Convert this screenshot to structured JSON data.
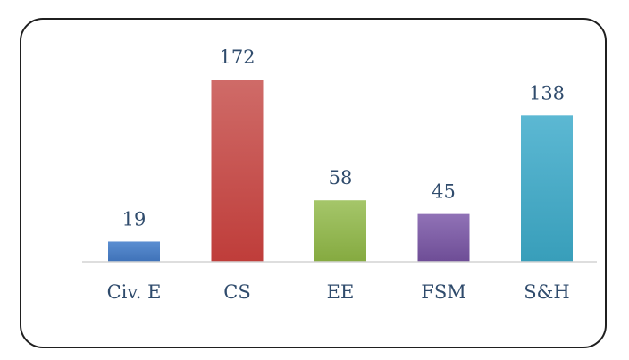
{
  "chart_data": {
    "type": "bar",
    "categories": [
      "Civ. E",
      "CS",
      "EE",
      "FSM",
      "S&H"
    ],
    "values": [
      19,
      172,
      58,
      45,
      138
    ],
    "colors": [
      "#4a7ec4",
      "#c6504e",
      "#92b650",
      "#7e5da4",
      "#45aac5"
    ],
    "data_labels": true,
    "title": "",
    "xlabel": "",
    "ylabel": "",
    "ylim": [
      0,
      172
    ],
    "grid": false,
    "legend": "none"
  }
}
